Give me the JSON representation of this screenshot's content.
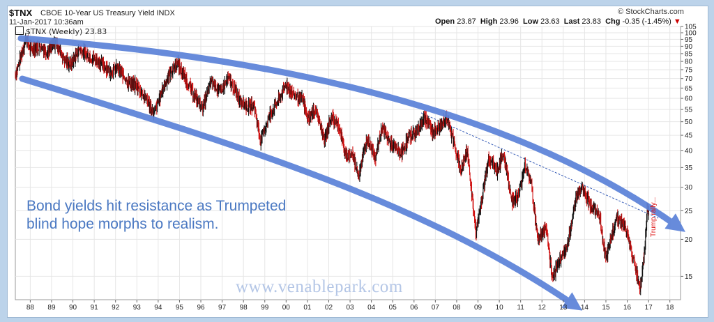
{
  "header": {
    "symbol": "$TNX",
    "name": "CBOE 10-Year US Treasury Yield INDX",
    "datetime": "11-Jan-2017 10:36am",
    "brand": "© StockCharts.com",
    "open_label": "Open",
    "open": "23.87",
    "high_label": "High",
    "high": "23.96",
    "low_label": "Low",
    "low": "23.63",
    "last_label": "Last",
    "last": "23.83",
    "chg_label": "Chg",
    "chg": "-0.35 (-1.45%)",
    "chg_arrow": "▼"
  },
  "legend": {
    "text": "$TNX (Weekly) 23.83",
    "swatch_color": "#ffffff"
  },
  "annotation": {
    "line1": "Bond yields hit resistance as Trumpeted",
    "line2": "blind hope morphs to realism."
  },
  "watermark": "www.venablepark.com",
  "rally_label": "Trump rally...",
  "colors": {
    "up": "#111111",
    "down": "#d01010",
    "channel": "#5b82d8",
    "dotted": "#3a5fb8",
    "annotation": "#4a78c2"
  },
  "chart_data": {
    "type": "line",
    "y_scale": "log",
    "ylim": [
      12.5,
      105
    ],
    "xlim": [
      1987.3,
      2018.5
    ],
    "x_ticks": [
      "88",
      "89",
      "90",
      "91",
      "92",
      "93",
      "94",
      "95",
      "96",
      "97",
      "98",
      "99",
      "00",
      "01",
      "02",
      "03",
      "04",
      "05",
      "06",
      "07",
      "08",
      "09",
      "10",
      "11",
      "12",
      "13",
      "14",
      "15",
      "16",
      "17",
      "18"
    ],
    "y_ticks": [
      15,
      20,
      25,
      30,
      35,
      40,
      45,
      50,
      55,
      60,
      65,
      70,
      75,
      80,
      85,
      90,
      95,
      100,
      105
    ],
    "series": [
      {
        "values": [
          [
            1987.3,
            72
          ],
          [
            1987.5,
            80
          ],
          [
            1987.8,
            96
          ],
          [
            1988.0,
            88
          ],
          [
            1988.5,
            90
          ],
          [
            1988.8,
            86
          ],
          [
            1989.2,
            93
          ],
          [
            1989.6,
            81
          ],
          [
            1989.9,
            78
          ],
          [
            1990.3,
            88
          ],
          [
            1990.8,
            83
          ],
          [
            1991.2,
            80
          ],
          [
            1991.8,
            74
          ],
          [
            1992.1,
            76
          ],
          [
            1992.6,
            68
          ],
          [
            1993.0,
            66
          ],
          [
            1993.5,
            59
          ],
          [
            1993.8,
            53
          ],
          [
            1994.2,
            64
          ],
          [
            1994.5,
            72
          ],
          [
            1994.9,
            79
          ],
          [
            1995.5,
            65
          ],
          [
            1995.9,
            58
          ],
          [
            1996.1,
            56
          ],
          [
            1996.5,
            69
          ],
          [
            1996.9,
            63
          ],
          [
            1997.3,
            70
          ],
          [
            1997.8,
            60
          ],
          [
            1998.2,
            56
          ],
          [
            1998.5,
            57
          ],
          [
            1998.8,
            43
          ],
          [
            1999.2,
            52
          ],
          [
            1999.8,
            62
          ],
          [
            2000.0,
            67
          ],
          [
            2000.3,
            62
          ],
          [
            2000.8,
            59
          ],
          [
            2001.0,
            51
          ],
          [
            2001.4,
            55
          ],
          [
            2001.8,
            43
          ],
          [
            2002.1,
            52
          ],
          [
            2002.5,
            48
          ],
          [
            2002.8,
            38
          ],
          [
            2003.1,
            39
          ],
          [
            2003.4,
            33
          ],
          [
            2003.8,
            44
          ],
          [
            2004.2,
            38
          ],
          [
            2004.5,
            48
          ],
          [
            2004.9,
            42
          ],
          [
            2005.4,
            39
          ],
          [
            2005.8,
            45
          ],
          [
            2006.1,
            46
          ],
          [
            2006.5,
            52
          ],
          [
            2006.9,
            46
          ],
          [
            2007.3,
            49
          ],
          [
            2007.5,
            52
          ],
          [
            2007.9,
            42
          ],
          [
            2008.2,
            34
          ],
          [
            2008.5,
            40
          ],
          [
            2008.9,
            21
          ],
          [
            2009.2,
            28
          ],
          [
            2009.5,
            38
          ],
          [
            2009.9,
            34
          ],
          [
            2010.2,
            39
          ],
          [
            2010.6,
            27
          ],
          [
            2010.9,
            28
          ],
          [
            2011.2,
            36
          ],
          [
            2011.5,
            31
          ],
          [
            2011.8,
            20
          ],
          [
            2012.2,
            22
          ],
          [
            2012.5,
            14.5
          ],
          [
            2012.8,
            17
          ],
          [
            2013.2,
            19
          ],
          [
            2013.6,
            28
          ],
          [
            2013.9,
            30
          ],
          [
            2014.3,
            26
          ],
          [
            2014.7,
            24
          ],
          [
            2015.0,
            17
          ],
          [
            2015.5,
            24
          ],
          [
            2015.9,
            22
          ],
          [
            2016.3,
            17
          ],
          [
            2016.6,
            13.7
          ],
          [
            2016.8,
            18
          ],
          [
            2016.95,
            26
          ],
          [
            2017.03,
            23.83
          ]
        ]
      }
    ]
  }
}
